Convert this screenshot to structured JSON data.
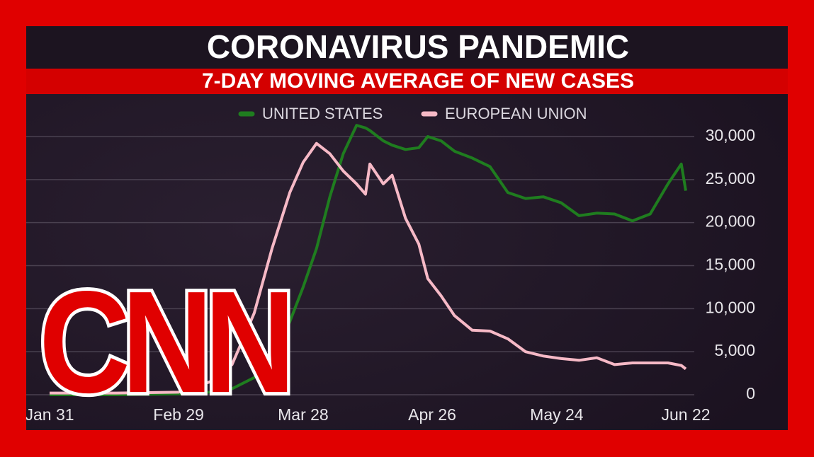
{
  "chart_data": {
    "type": "line",
    "title": "CORONAVIRUS PANDEMIC",
    "subtitle": "7-DAY MOVING AVERAGE OF NEW CASES",
    "x": [
      "Jan 31",
      "Feb 15",
      "Feb 29",
      "Mar 7",
      "Mar 12",
      "Mar 17",
      "Mar 21",
      "Mar 25",
      "Mar 28",
      "Mar 31",
      "Apr 3",
      "Apr 6",
      "Apr 9",
      "Apr 11",
      "Apr 12",
      "Apr 15",
      "Apr 17",
      "Apr 20",
      "Apr 23",
      "Apr 25",
      "Apr 28",
      "May 1",
      "May 5",
      "May 9",
      "May 13",
      "May 17",
      "May 21",
      "May 25",
      "May 29",
      "Jun 2",
      "Jun 6",
      "Jun 10",
      "Jun 14",
      "Jun 18",
      "Jun 21",
      "Jun 22"
    ],
    "series": [
      {
        "name": "UNITED STATES",
        "color": "#1f7d1f",
        "values": [
          0,
          0,
          100,
          300,
          700,
          2000,
          4000,
          8500,
          12500,
          17000,
          23000,
          28000,
          31300,
          31000,
          30700,
          29500,
          29000,
          28500,
          28700,
          30000,
          29500,
          28300,
          27500,
          26500,
          23500,
          22800,
          23000,
          22300,
          20800,
          21100,
          21000,
          20200,
          21000,
          24500,
          26800,
          23700
        ]
      },
      {
        "name": "EUROPEAN UNION",
        "color": "#f6b9c6",
        "values": [
          200,
          200,
          300,
          1500,
          3500,
          9500,
          17000,
          23500,
          27000,
          29200,
          28000,
          26000,
          24500,
          23300,
          26800,
          24500,
          25500,
          20500,
          17500,
          13500,
          11500,
          9200,
          7500,
          7400,
          6500,
          5000,
          4500,
          4200,
          4000,
          4300,
          3500,
          3700,
          3700,
          3700,
          3400,
          3000
        ]
      }
    ],
    "xlim": [
      "Jan 31",
      "Jun 22"
    ],
    "xticks": [
      "Jan 31",
      "Feb 29",
      "Mar 28",
      "Apr 26",
      "May 24",
      "Jun 22"
    ],
    "ylim": [
      0,
      30000
    ],
    "yticks": [
      0,
      {
        "value": 5000,
        "label": "5,000"
      },
      {
        "value": 10000,
        "label": "10,000"
      },
      {
        "value": 15000,
        "label": "15,000"
      },
      {
        "value": 20000,
        "label": "20,000"
      },
      {
        "value": 25000,
        "label": "25,000"
      },
      {
        "value": 30000,
        "label": "30,000"
      }
    ],
    "grid": true
  },
  "logo": "CNN"
}
